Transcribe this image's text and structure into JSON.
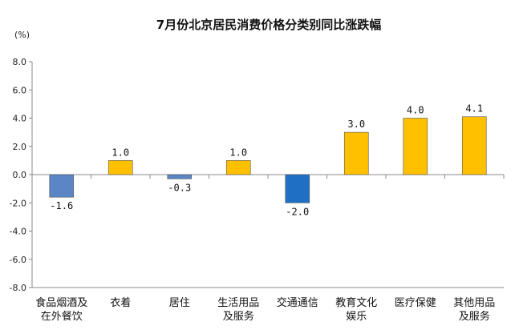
{
  "chart_data": {
    "type": "bar",
    "title": "7月份北京居民消费价格分类别同比涨跌幅",
    "unit_label": "(%)",
    "categories": [
      [
        "食品烟酒及",
        "在外餐饮"
      ],
      [
        "衣着"
      ],
      [
        "居住"
      ],
      [
        "生活用品",
        "及服务"
      ],
      [
        "交通通信"
      ],
      [
        "教育文化",
        "娱乐"
      ],
      [
        "医疗保健"
      ],
      [
        "其他用品",
        "及服务"
      ]
    ],
    "values": [
      -1.6,
      1.0,
      -0.3,
      1.0,
      -2.0,
      3.0,
      4.0,
      4.1
    ],
    "value_labels": [
      "-1.6",
      "1.0",
      "-0.3",
      "1.0",
      "-2.0",
      "3.0",
      "4.0",
      "4.1"
    ],
    "bar_colors": [
      "#5B86C5",
      "#FFC000",
      "#5B86C5",
      "#FFC000",
      "#1F6FC5",
      "#FFC000",
      "#FFC000",
      "#FFC000"
    ],
    "ylim": [
      -8.0,
      8.0
    ],
    "yticks": [
      8.0,
      6.0,
      4.0,
      2.0,
      0.0,
      -2.0,
      -4.0,
      -6.0,
      -8.0
    ],
    "ytick_labels": [
      "8.0",
      "6.0",
      "4.0",
      "2.0",
      "0.0",
      "-2.0",
      "-4.0",
      "-6.0",
      "-8.0"
    ],
    "grid": false,
    "legend": "none"
  }
}
